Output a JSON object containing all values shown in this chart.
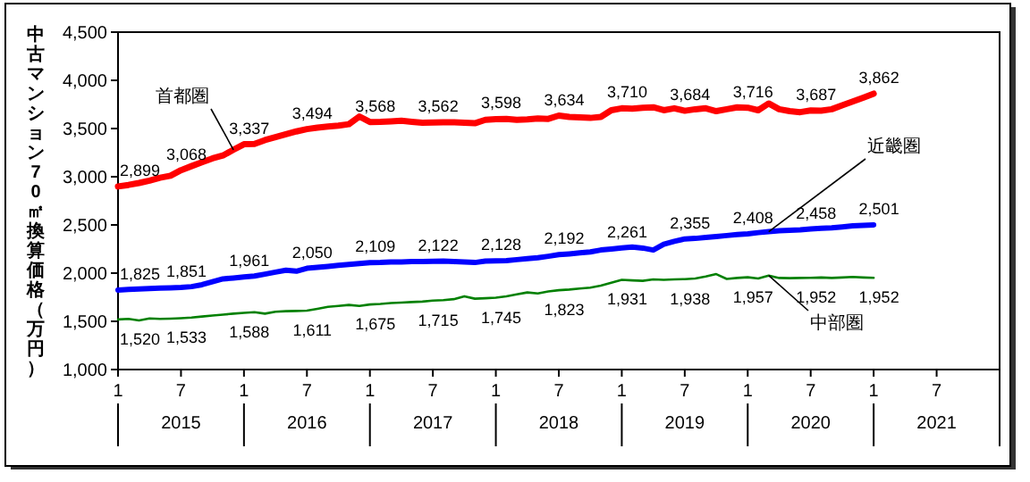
{
  "chart_data": {
    "type": "line",
    "ylabel": "中古マンション70㎡換算価格（万円）",
    "x": [
      "2015-01",
      "2015-02",
      "2015-03",
      "2015-04",
      "2015-05",
      "2015-06",
      "2015-07",
      "2015-08",
      "2015-09",
      "2015-10",
      "2015-11",
      "2015-12",
      "2016-01",
      "2016-02",
      "2016-03",
      "2016-04",
      "2016-05",
      "2016-06",
      "2016-07",
      "2016-08",
      "2016-09",
      "2016-10",
      "2016-11",
      "2016-12",
      "2017-01",
      "2017-02",
      "2017-03",
      "2017-04",
      "2017-05",
      "2017-06",
      "2017-07",
      "2017-08",
      "2017-09",
      "2017-10",
      "2017-11",
      "2017-12",
      "2018-01",
      "2018-02",
      "2018-03",
      "2018-04",
      "2018-05",
      "2018-06",
      "2018-07",
      "2018-08",
      "2018-09",
      "2018-10",
      "2018-11",
      "2018-12",
      "2019-01",
      "2019-02",
      "2019-03",
      "2019-04",
      "2019-05",
      "2019-06",
      "2019-07",
      "2019-08",
      "2019-09",
      "2019-10",
      "2019-11",
      "2019-12",
      "2020-01",
      "2020-02",
      "2020-03",
      "2020-04",
      "2020-05",
      "2020-06",
      "2020-07",
      "2020-08",
      "2020-09",
      "2020-10",
      "2020-11",
      "2020-12",
      "2021-01"
    ],
    "series": [
      {
        "name": "首都圏",
        "color": "#ff0000",
        "values": [
          2899,
          2915,
          2935,
          2960,
          2990,
          3010,
          3068,
          3110,
          3150,
          3190,
          3220,
          3280,
          3337,
          3340,
          3380,
          3410,
          3440,
          3470,
          3494,
          3510,
          3520,
          3530,
          3545,
          3625,
          3568,
          3570,
          3575,
          3580,
          3570,
          3560,
          3562,
          3565,
          3565,
          3560,
          3555,
          3590,
          3598,
          3600,
          3590,
          3595,
          3605,
          3600,
          3634,
          3620,
          3615,
          3610,
          3620,
          3690,
          3710,
          3705,
          3715,
          3720,
          3690,
          3710,
          3684,
          3700,
          3710,
          3680,
          3700,
          3720,
          3716,
          3690,
          3760,
          3700,
          3680,
          3670,
          3687,
          3685,
          3700,
          3740,
          3780,
          3820,
          3862
        ],
        "value_labels": [
          "2,899",
          null,
          null,
          null,
          null,
          null,
          "3,068",
          null,
          null,
          null,
          null,
          null,
          "3,337",
          null,
          null,
          null,
          null,
          null,
          "3,494",
          null,
          null,
          null,
          null,
          null,
          "3,568",
          null,
          null,
          null,
          null,
          null,
          "3,562",
          null,
          null,
          null,
          null,
          null,
          "3,598",
          null,
          null,
          null,
          null,
          null,
          "3,634",
          null,
          null,
          null,
          null,
          null,
          "3,710",
          null,
          null,
          null,
          null,
          null,
          "3,684",
          null,
          null,
          null,
          null,
          null,
          "3,716",
          null,
          null,
          null,
          null,
          null,
          "3,687",
          null,
          null,
          null,
          null,
          null,
          "3,862"
        ]
      },
      {
        "name": "近畿圏",
        "color": "#0000ff",
        "values": [
          1825,
          1830,
          1835,
          1840,
          1845,
          1848,
          1851,
          1860,
          1880,
          1910,
          1940,
          1950,
          1961,
          1970,
          1990,
          2010,
          2030,
          2020,
          2050,
          2060,
          2070,
          2080,
          2090,
          2100,
          2109,
          2110,
          2115,
          2115,
          2120,
          2120,
          2122,
          2125,
          2120,
          2115,
          2110,
          2125,
          2128,
          2130,
          2140,
          2150,
          2160,
          2175,
          2192,
          2200,
          2210,
          2220,
          2240,
          2250,
          2261,
          2270,
          2260,
          2240,
          2300,
          2330,
          2355,
          2360,
          2370,
          2380,
          2390,
          2400,
          2408,
          2420,
          2430,
          2440,
          2445,
          2450,
          2458,
          2465,
          2470,
          2480,
          2490,
          2495,
          2501
        ],
        "value_labels": [
          "1,825",
          null,
          null,
          null,
          null,
          null,
          "1,851",
          null,
          null,
          null,
          null,
          null,
          "1,961",
          null,
          null,
          null,
          null,
          null,
          "2,050",
          null,
          null,
          null,
          null,
          null,
          "2,109",
          null,
          null,
          null,
          null,
          null,
          "2,122",
          null,
          null,
          null,
          null,
          null,
          "2,128",
          null,
          null,
          null,
          null,
          null,
          "2,192",
          null,
          null,
          null,
          null,
          null,
          "2,261",
          null,
          null,
          null,
          null,
          null,
          "2,355",
          null,
          null,
          null,
          null,
          null,
          "2,408",
          null,
          null,
          null,
          null,
          null,
          "2,458",
          null,
          null,
          null,
          null,
          null,
          "2,501"
        ]
      },
      {
        "name": "中部圏",
        "color": "#008000",
        "values": [
          1520,
          1525,
          1510,
          1530,
          1525,
          1528,
          1533,
          1540,
          1550,
          1560,
          1570,
          1580,
          1588,
          1595,
          1580,
          1600,
          1605,
          1608,
          1611,
          1630,
          1650,
          1660,
          1670,
          1660,
          1675,
          1680,
          1690,
          1695,
          1700,
          1705,
          1715,
          1720,
          1730,
          1760,
          1735,
          1740,
          1745,
          1760,
          1780,
          1800,
          1790,
          1810,
          1823,
          1830,
          1840,
          1850,
          1870,
          1900,
          1931,
          1925,
          1920,
          1935,
          1930,
          1935,
          1938,
          1945,
          1965,
          1990,
          1940,
          1950,
          1957,
          1945,
          1975,
          1950,
          1948,
          1950,
          1952,
          1955,
          1950,
          1955,
          1960,
          1955,
          1952
        ],
        "value_labels": [
          "1,520",
          null,
          null,
          null,
          null,
          null,
          "1,533",
          null,
          null,
          null,
          null,
          null,
          "1,588",
          null,
          null,
          null,
          null,
          null,
          "1,611",
          null,
          null,
          null,
          null,
          null,
          "1,675",
          null,
          null,
          null,
          null,
          null,
          "1,715",
          null,
          null,
          null,
          null,
          null,
          "1,745",
          null,
          null,
          null,
          null,
          null,
          "1,823",
          null,
          null,
          null,
          null,
          null,
          "1,931",
          null,
          null,
          null,
          null,
          null,
          "1,938",
          null,
          null,
          null,
          null,
          null,
          "1,957",
          null,
          null,
          null,
          null,
          null,
          "1,952",
          null,
          null,
          null,
          null,
          null,
          "1,952"
        ]
      }
    ],
    "xlim": [
      "2015-01",
      "2022-01"
    ],
    "xticks": [
      {
        "value": "2015-01",
        "label": "1"
      },
      {
        "value": "2015-07",
        "label": "7"
      },
      {
        "value": "2016-01",
        "label": "1"
      },
      {
        "value": "2016-07",
        "label": "7"
      },
      {
        "value": "2017-01",
        "label": "1"
      },
      {
        "value": "2017-07",
        "label": "7"
      },
      {
        "value": "2018-01",
        "label": "1"
      },
      {
        "value": "2018-07",
        "label": "7"
      },
      {
        "value": "2019-01",
        "label": "1"
      },
      {
        "value": "2019-07",
        "label": "7"
      },
      {
        "value": "2020-01",
        "label": "1"
      },
      {
        "value": "2020-07",
        "label": "7"
      },
      {
        "value": "2021-01",
        "label": "1"
      },
      {
        "value": "2021-07",
        "label": "7"
      }
    ],
    "ylim": [
      1000,
      4500
    ],
    "yticks": [
      {
        "value": 1000,
        "label": "1,000"
      },
      {
        "value": 1500,
        "label": "1,500"
      },
      {
        "value": 2000,
        "label": "2,000"
      },
      {
        "value": 2500,
        "label": "2,500"
      },
      {
        "value": 3000,
        "label": "3,000"
      },
      {
        "value": 3500,
        "label": "3,500"
      },
      {
        "value": 4000,
        "label": "4,000"
      },
      {
        "value": 4500,
        "label": "4,500"
      }
    ],
    "annotations": [
      "2015",
      "2016",
      "2017",
      "2018",
      "2019",
      "2020",
      "2021"
    ],
    "grid": false,
    "legend": false,
    "marker": "none",
    "line_style": "solid"
  }
}
